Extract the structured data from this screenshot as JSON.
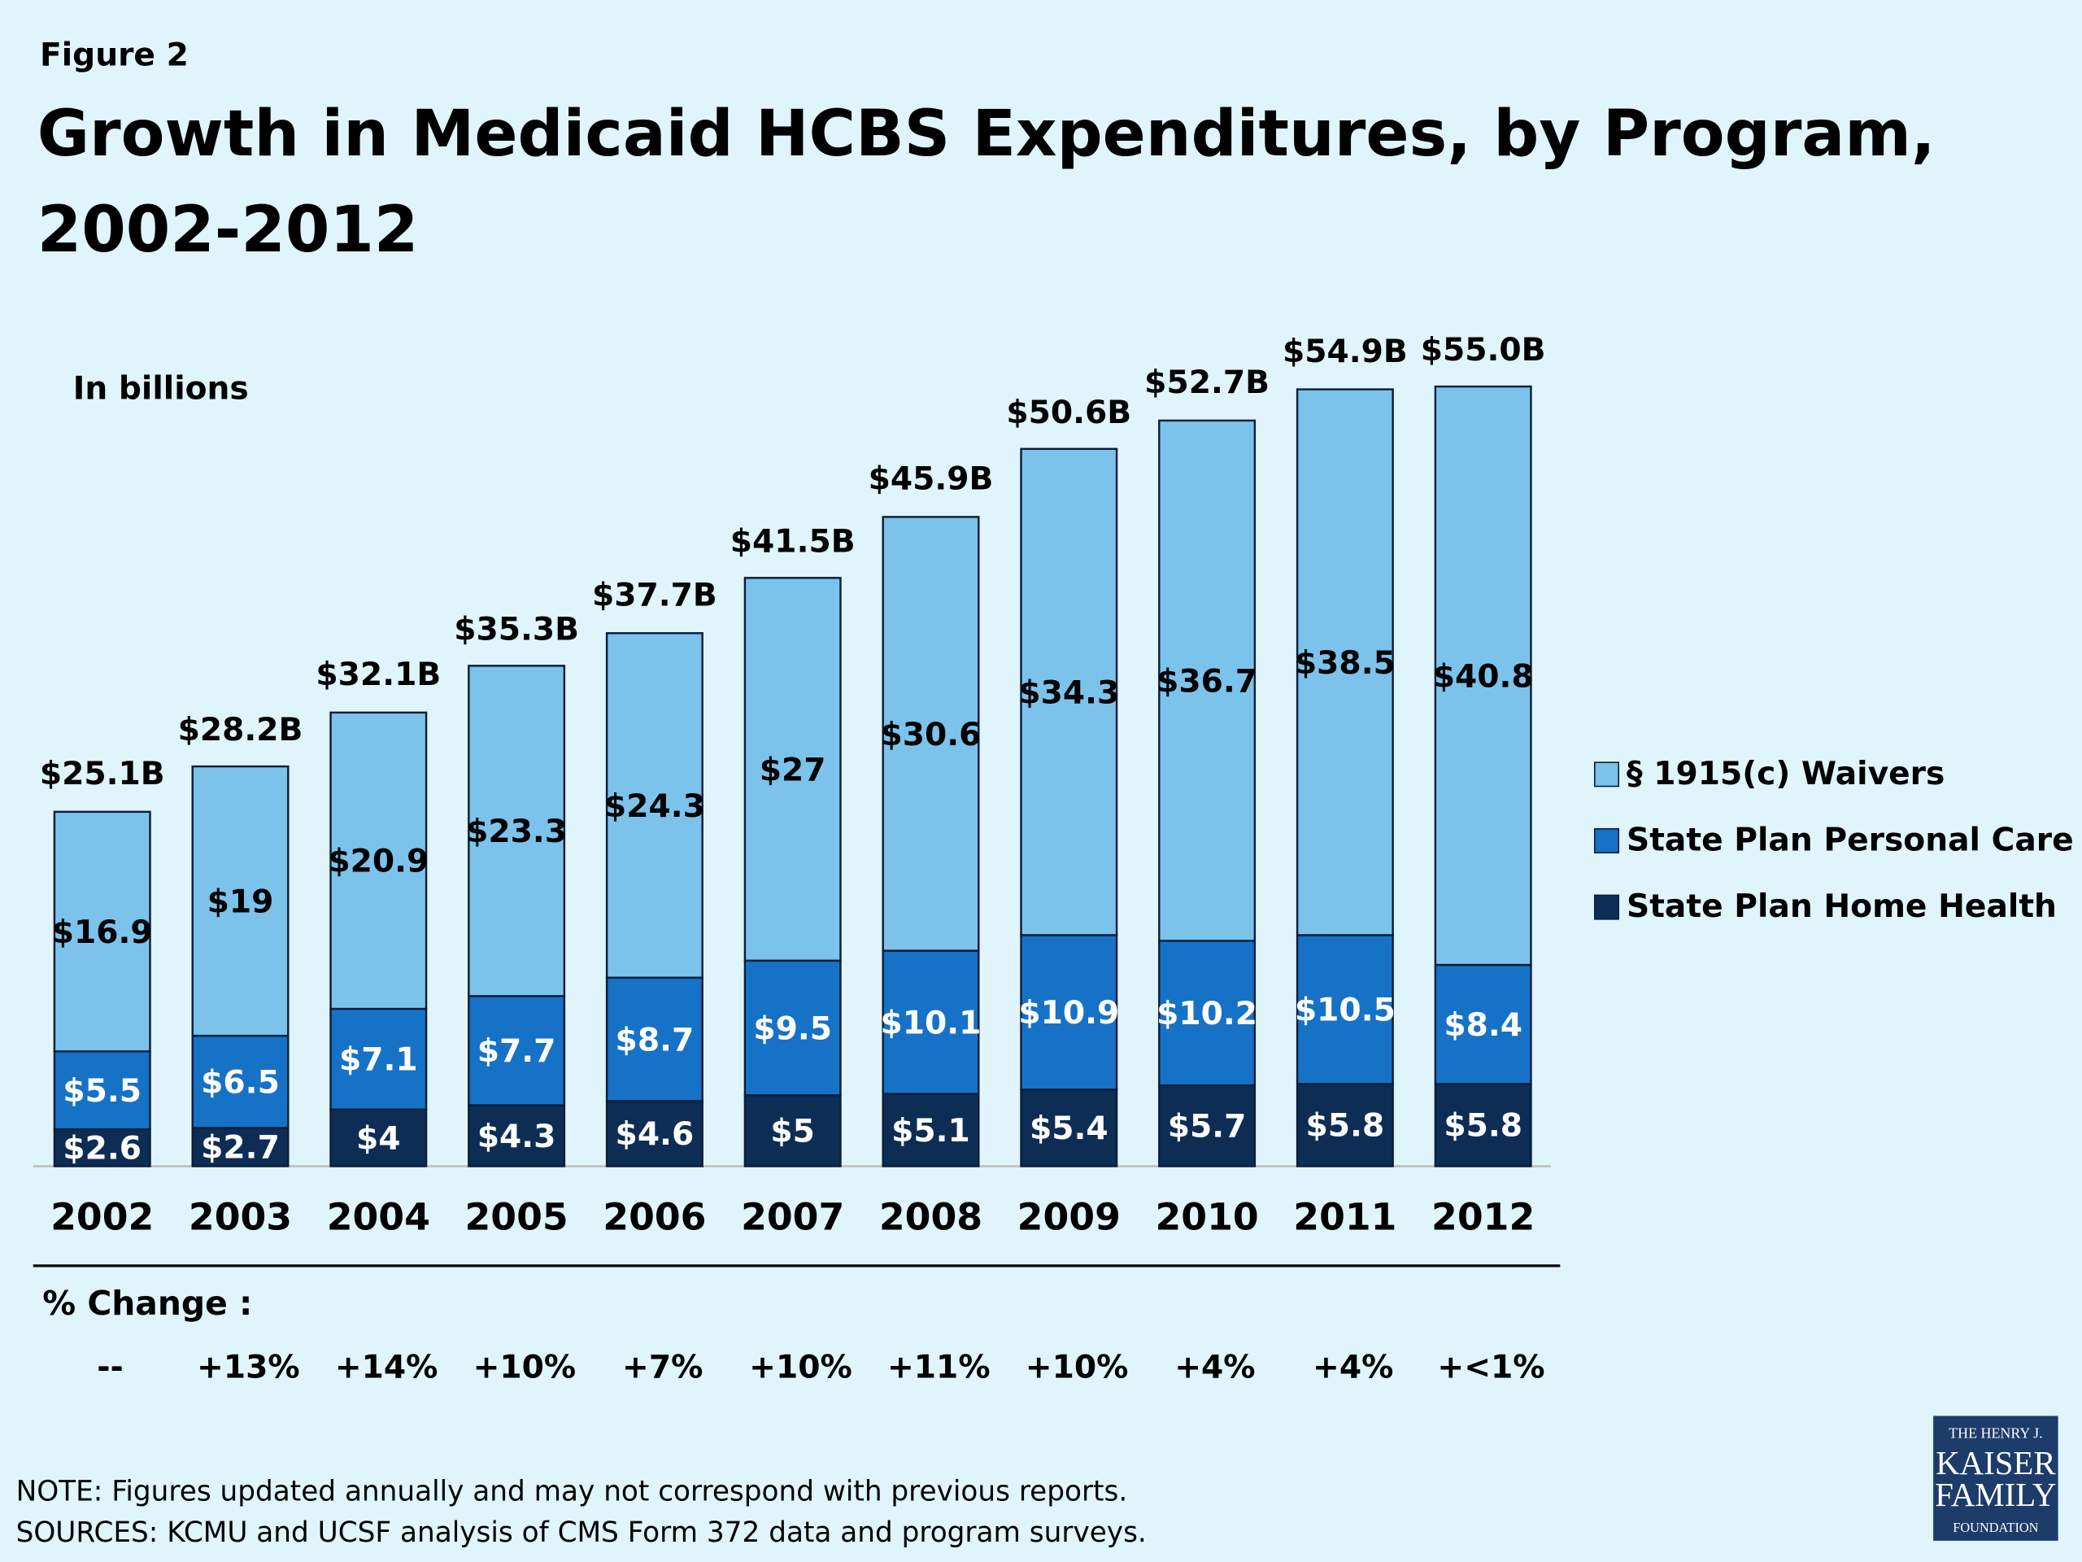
{
  "figure_label": "Figure 2",
  "chart_data": {
    "type": "stacked_bar",
    "title_lines": [
      "Growth in Medicaid HCBS Expenditures, by Program,",
      "2002-2012"
    ],
    "unit_label": "In billions",
    "categories": [
      "2002",
      "2003",
      "2004",
      "2005",
      "2006",
      "2007",
      "2008",
      "2009",
      "2010",
      "2011",
      "2012"
    ],
    "series": [
      {
        "name": "State Plan Home Health",
        "color": "#0e2d55",
        "label_color": "#ffffff",
        "values": [
          2.6,
          2.7,
          4,
          4.3,
          4.6,
          5,
          5.1,
          5.4,
          5.7,
          5.8,
          5.8
        ],
        "value_labels": [
          "$2.6",
          "$2.7",
          "$4",
          "$4.3",
          "$4.6",
          "$5",
          "$5.1",
          "$5.4",
          "$5.7",
          "$5.8",
          "$5.8"
        ]
      },
      {
        "name": "State Plan Personal Care",
        "color": "#1672c6",
        "label_color": "#ffffff",
        "values": [
          5.5,
          6.5,
          7.1,
          7.7,
          8.7,
          9.5,
          10.1,
          10.9,
          10.2,
          10.5,
          8.4
        ],
        "value_labels": [
          "$5.5",
          "$6.5",
          "$7.1",
          "$7.7",
          "$8.7",
          "$9.5",
          "$10.1",
          "$10.9",
          "$10.2",
          "$10.5",
          "$8.4"
        ]
      },
      {
        "name": "§ 1915(c) Waivers",
        "color": "#7cc3ec",
        "label_color": "#000000",
        "values": [
          16.9,
          19,
          20.9,
          23.3,
          24.3,
          27,
          30.6,
          34.3,
          36.7,
          38.5,
          40.8
        ],
        "value_labels": [
          "$16.9",
          "$19",
          "$20.9",
          "$23.3",
          "$24.3",
          "$27",
          "$30.6",
          "$34.3",
          "$36.7",
          "$38.5",
          "$40.8"
        ]
      }
    ],
    "totals": {
      "values": [
        25.1,
        28.2,
        32.1,
        35.3,
        37.7,
        41.5,
        45.9,
        50.6,
        52.7,
        54.9,
        55.0
      ],
      "value_labels": [
        "$25.1B",
        "$28.2B",
        "$32.1B",
        "$35.3B",
        "$37.7B",
        "$41.5B",
        "$45.9B",
        "$50.6B",
        "$52.7B",
        "$54.9B",
        "$55.0B"
      ]
    },
    "percent_change": {
      "label": "% Change :",
      "values": [
        "--",
        "+13%",
        "+14%",
        "+10%",
        "+7%",
        "+10%",
        "+11%",
        "+10%",
        "+4%",
        "+4%",
        "+<1%"
      ]
    },
    "ylim": [
      0,
      55
    ],
    "legend": "right"
  },
  "footer": {
    "note": "NOTE: Figures updated annually and may not correspond with previous reports.",
    "sources": "SOURCES: KCMU and UCSF analysis of CMS Form 372 data and program surveys."
  },
  "logo": [
    "THE HENRY J.",
    "KAISER",
    "FAMILY",
    "FOUNDATION"
  ]
}
